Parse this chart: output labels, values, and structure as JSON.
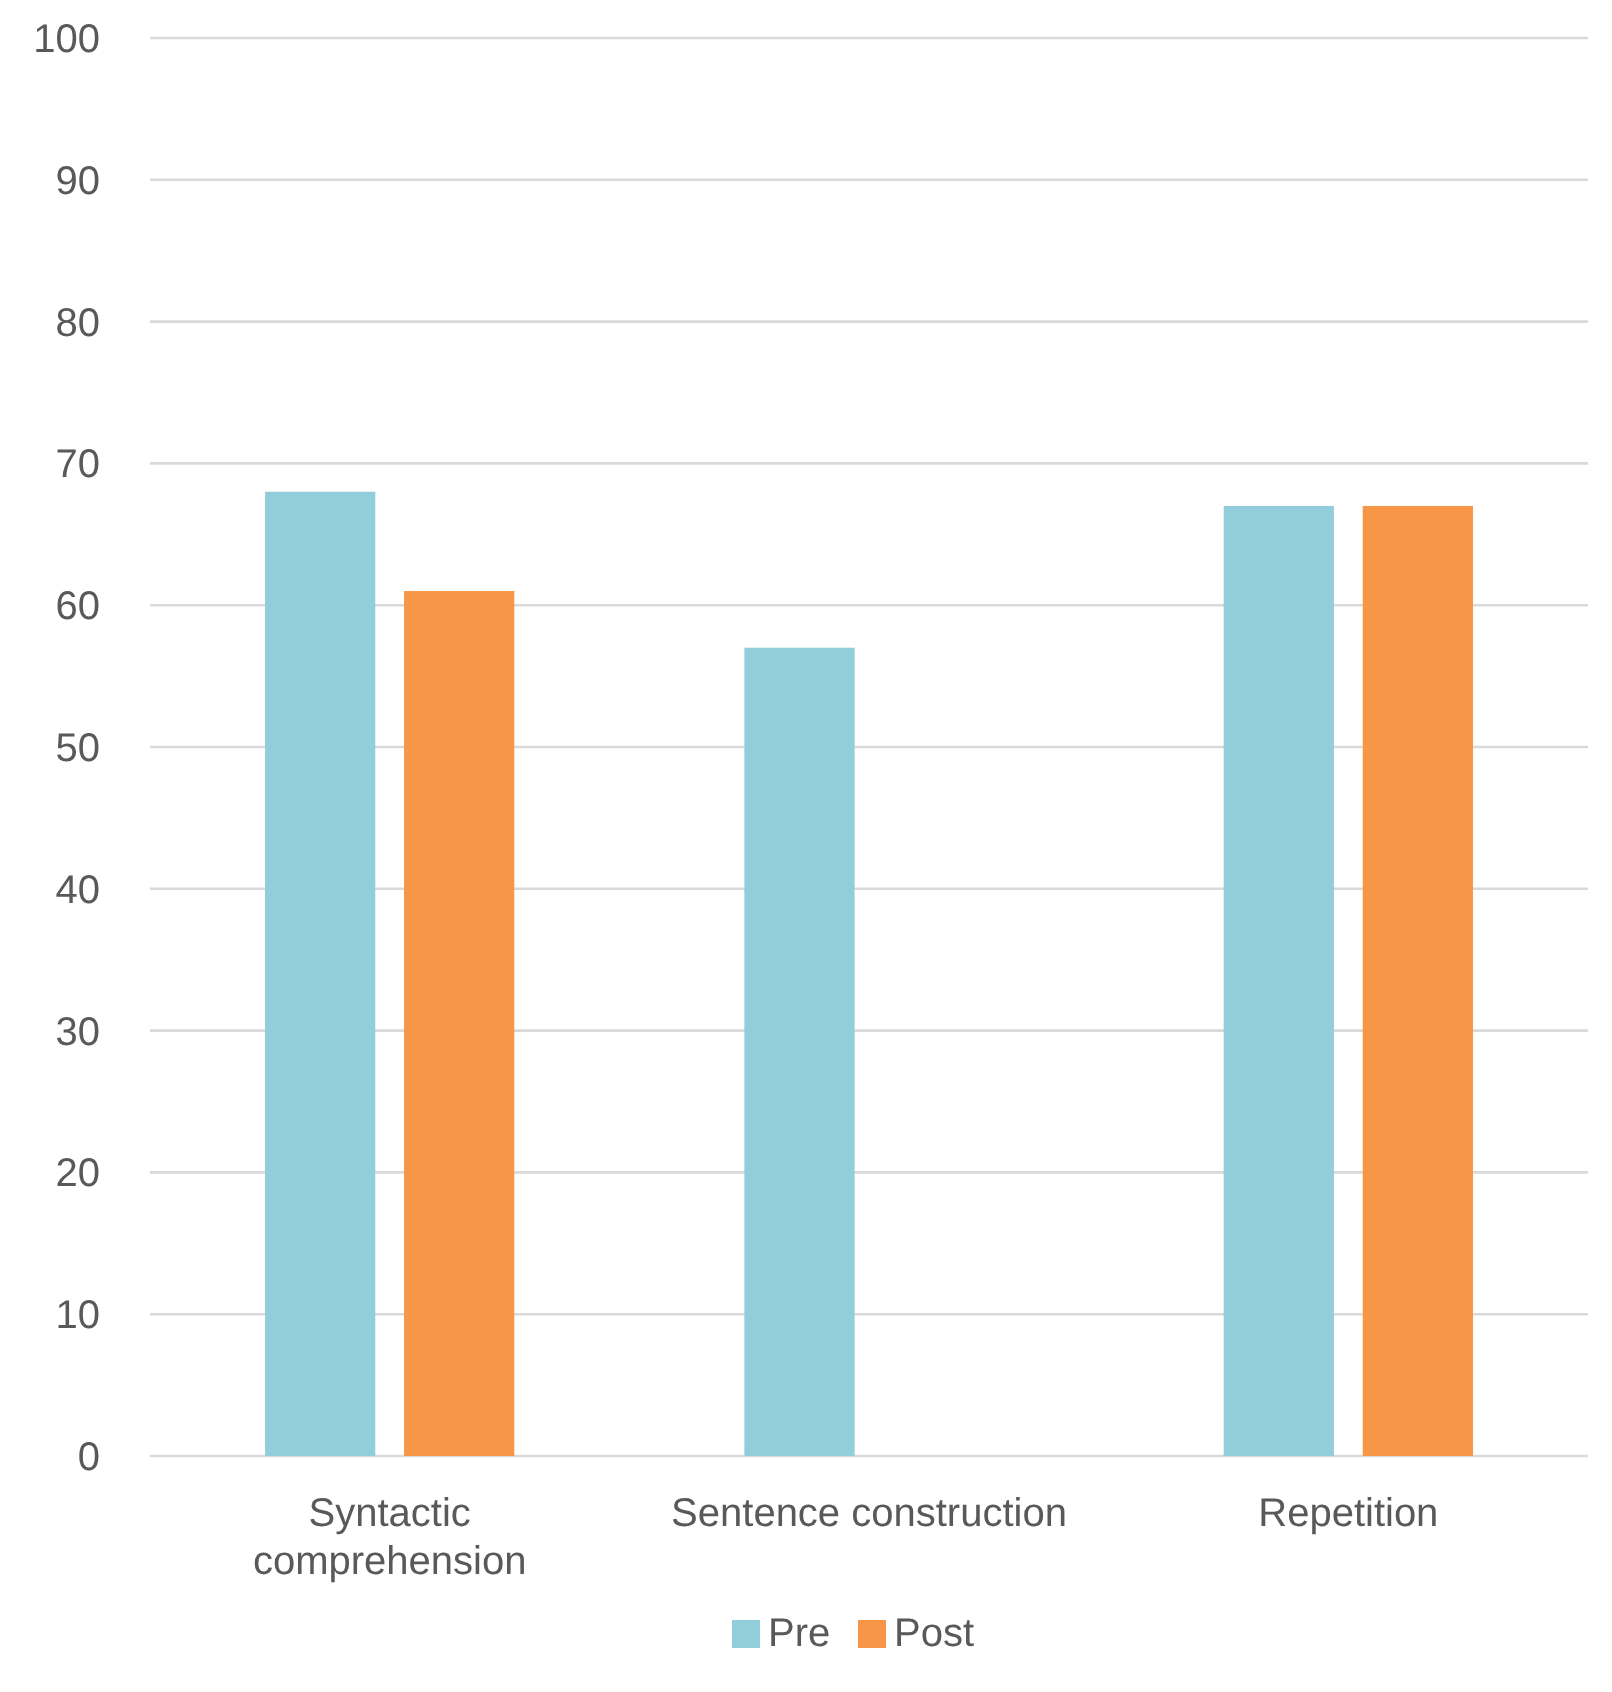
{
  "chart_data": {
    "type": "bar",
    "categories": [
      "Syntactic comprehension",
      "Sentence construction",
      "Repetition"
    ],
    "series": [
      {
        "name": "Pre",
        "color": "#92cddc",
        "values": [
          68,
          57,
          67
        ]
      },
      {
        "name": "Post",
        "color": "#f79646",
        "values": [
          61,
          null,
          67
        ]
      }
    ],
    "ylim": [
      0,
      100
    ],
    "yticks": [
      0,
      10,
      20,
      30,
      40,
      50,
      60,
      70,
      80,
      90,
      100
    ],
    "grid": "y",
    "legend": "bottom"
  }
}
